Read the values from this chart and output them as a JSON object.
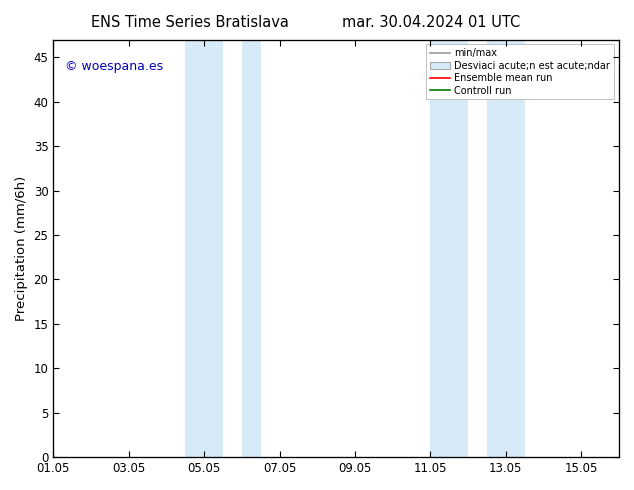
{
  "title_left": "ENS Time Series Bratislava",
  "title_right": "mar. 30.04.2024 01 UTC",
  "ylabel": "Precipitation (mm/6h)",
  "xlabel": "",
  "ylim": [
    0,
    47
  ],
  "yticks": [
    0,
    5,
    10,
    15,
    20,
    25,
    30,
    35,
    40,
    45
  ],
  "xtick_labels": [
    "01.05",
    "03.05",
    "05.05",
    "07.05",
    "09.05",
    "11.05",
    "13.05",
    "15.05"
  ],
  "xtick_positions": [
    0,
    2,
    4,
    6,
    8,
    10,
    12,
    14
  ],
  "xlim": [
    0,
    15
  ],
  "shaded_bands": [
    {
      "x_start": 3.5,
      "x_end": 4.5
    },
    {
      "x_start": 5.0,
      "x_end": 5.5
    },
    {
      "x_start": 10.0,
      "x_end": 11.0
    },
    {
      "x_start": 11.5,
      "x_end": 12.5
    }
  ],
  "shaded_color": "#d6eaf8",
  "watermark_text": "© woespana.es",
  "watermark_color": "#0000bb",
  "legend_label_minmax": "min/max",
  "legend_label_std": "Desviaci acute;n est acute;ndar",
  "legend_label_ens": "Ensemble mean run",
  "legend_label_ctrl": "Controll run",
  "legend_color_minmax": "#999999",
  "legend_color_std": "#d6eaf8",
  "legend_color_ens": "#ff0000",
  "legend_color_ctrl": "#008000",
  "background_color": "#ffffff",
  "tick_label_fontsize": 8.5,
  "axis_label_fontsize": 9.5,
  "title_fontsize": 10.5
}
